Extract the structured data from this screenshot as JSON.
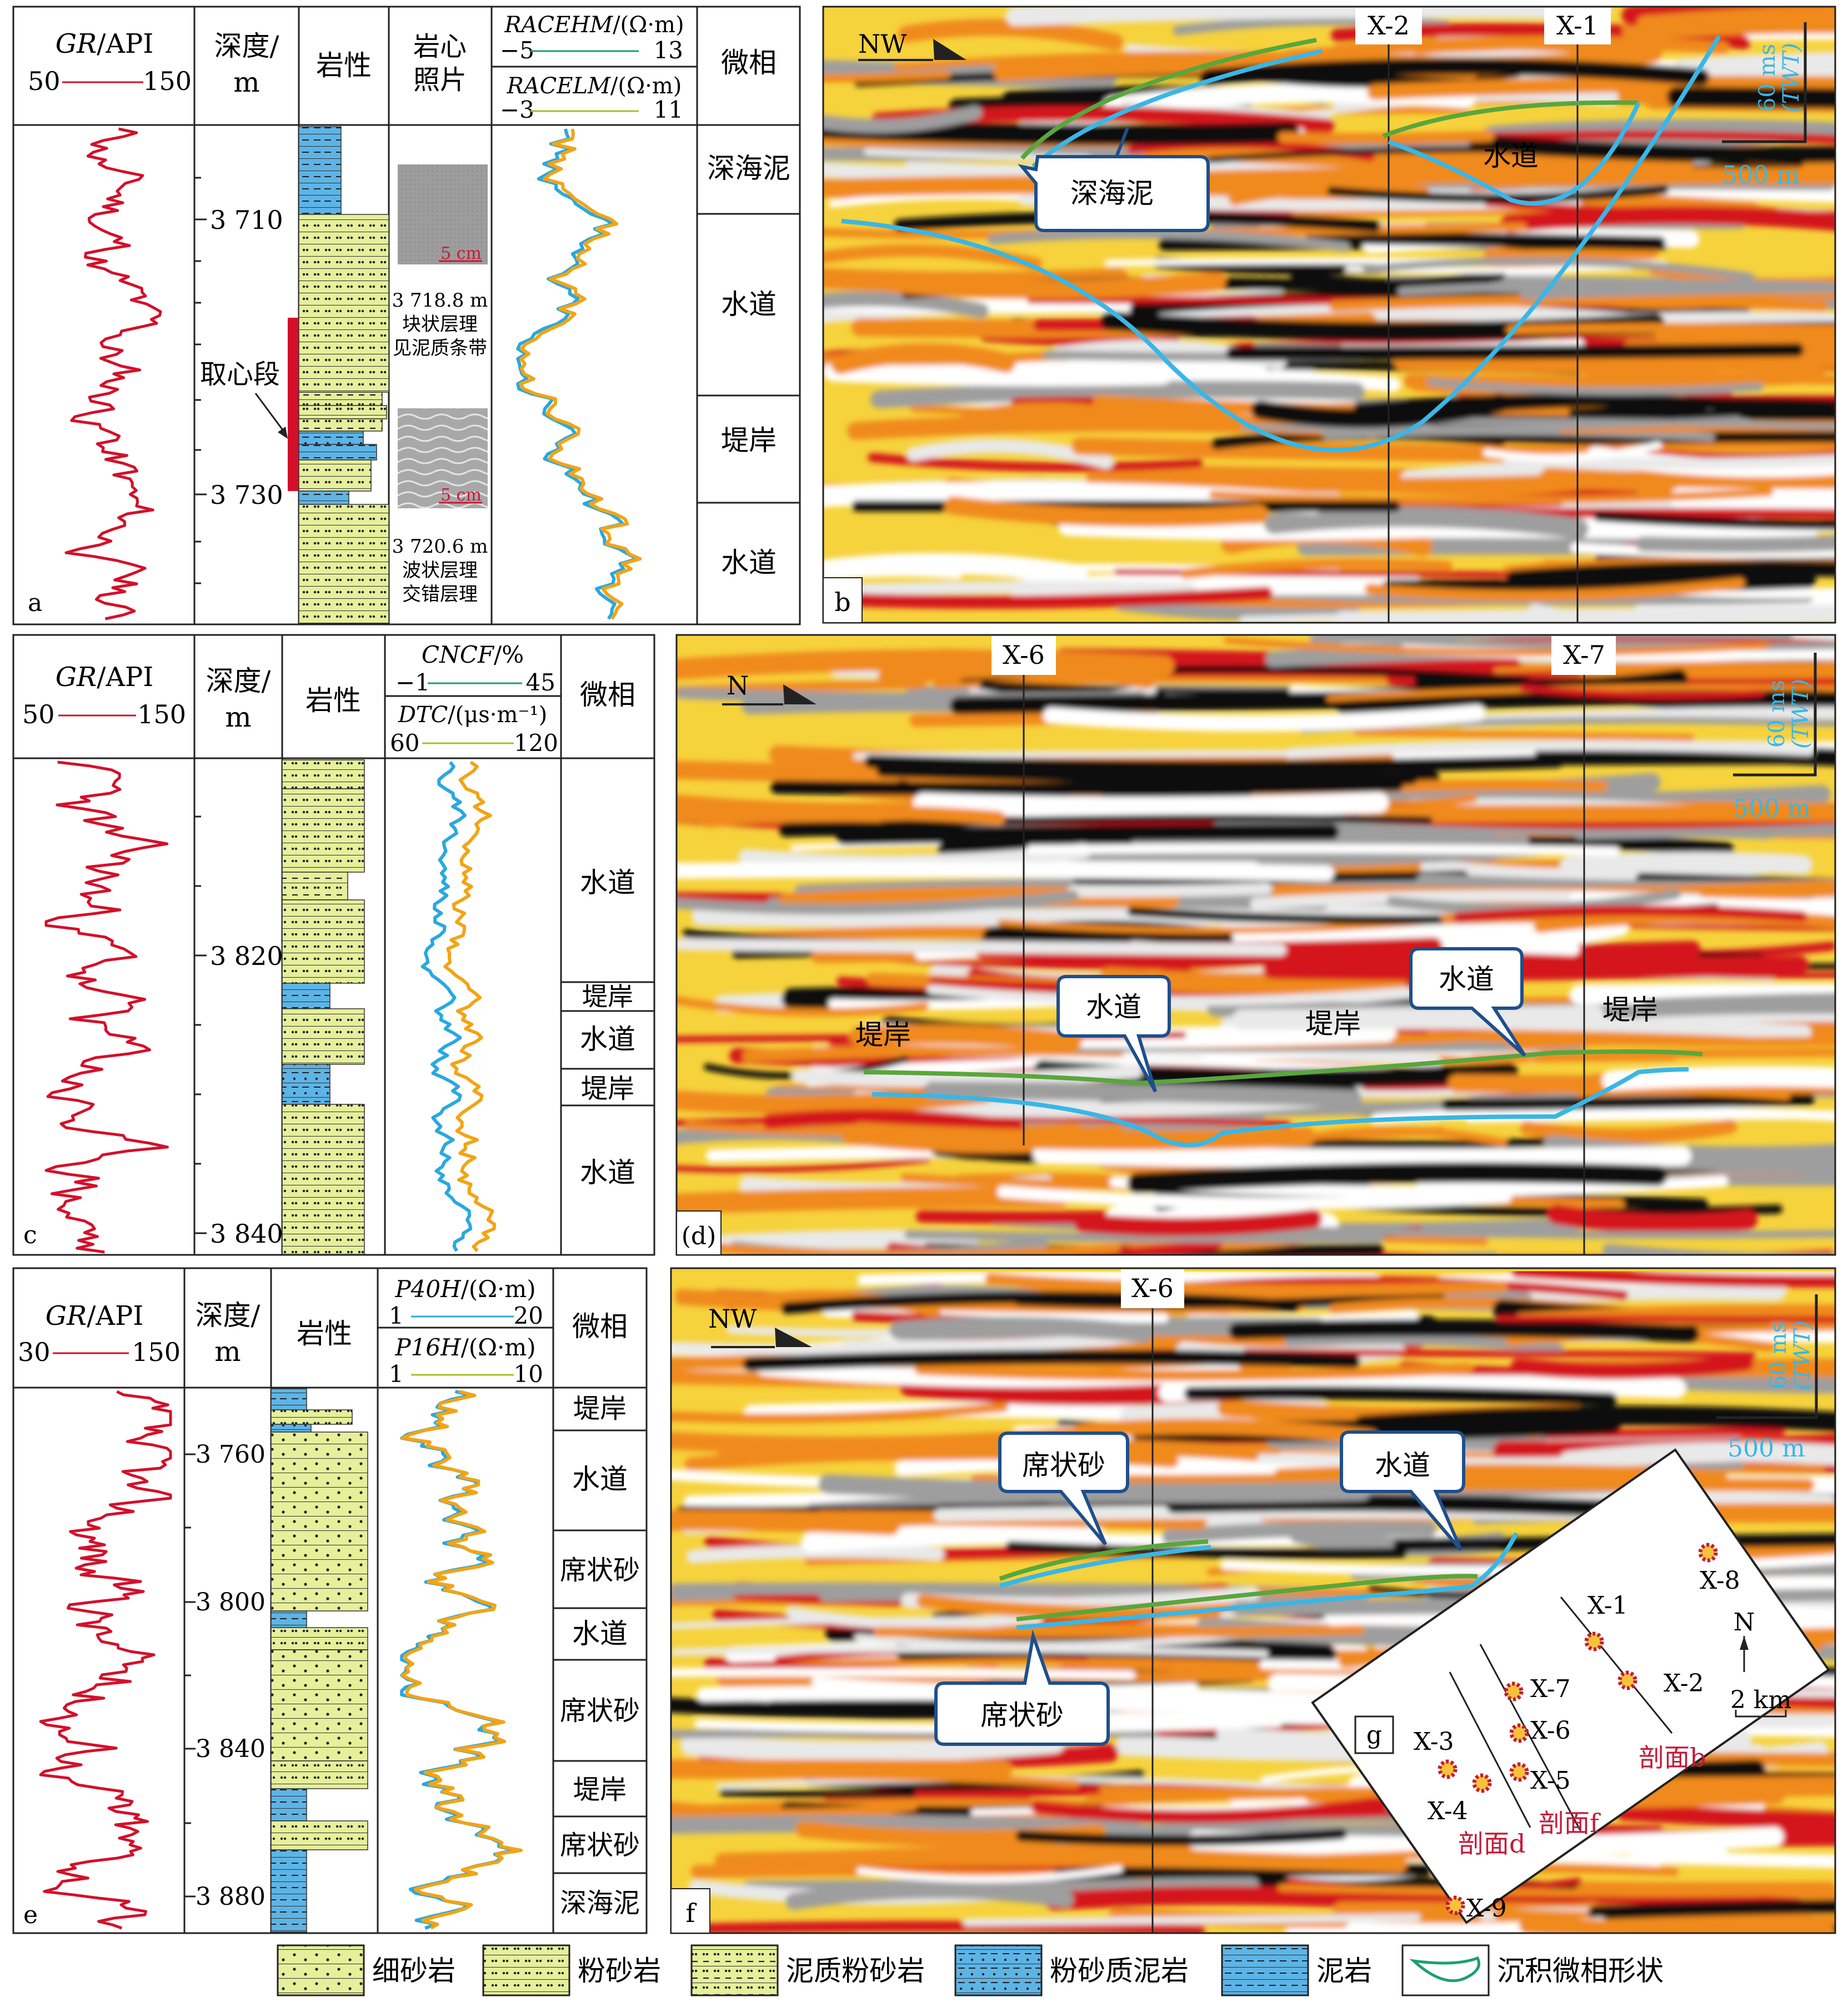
{
  "colors": {
    "gr_curve": "#d3102a",
    "curve_blue": "#2aa8df",
    "curve_orange": "#f2a416",
    "curve_green": "#1ca070",
    "curve_yellowgreen": "#a8bf2a",
    "horizon_green": "#5aa63c",
    "horizon_cyan": "#3ab6e6",
    "sandstone_fill": "#e6ef9a",
    "mudstone_fill": "#5cb4e6",
    "label_red": "#c41a38",
    "scale_cyan": "#3ab6e6",
    "seismic_yellow": "#f6d23c",
    "seismic_orange": "#f08a1a",
    "seismic_red": "#d4141a",
    "seismic_black": "#111111",
    "seismic_grey": "#9e9e9e"
  },
  "panel_a": {
    "label": "a",
    "gr_title": "GR",
    "gr_unit": "/API",
    "gr_min": "50",
    "gr_max": "150",
    "depth_title": "深度/",
    "depth_unit": "m",
    "litho_title": "岩性",
    "core_title_1": "岩心",
    "core_title_2": "照片",
    "res_deep_title": "RACEHM",
    "res_deep_unit": "/(Ω·m)",
    "res_deep_min": "−5",
    "res_deep_max": "13",
    "res_shallow_title": "RACELM",
    "res_shallow_unit": "/(Ω·m)",
    "res_shallow_min": "−3",
    "res_shallow_max": "11",
    "facies_title": "微相",
    "depth_ticks": [
      "3 710",
      "3 730"
    ],
    "coring_label": "取心段",
    "photo_scale": "5 cm",
    "photo1_caption": [
      "3 718.8 m",
      "块状层理",
      "见泥质条带"
    ],
    "photo2_caption": [
      "3 720.6 m",
      "波状层理",
      "交错层理"
    ],
    "facies": [
      "深海泥",
      "水道",
      "堤岸",
      "水道"
    ]
  },
  "panel_b": {
    "label": "b",
    "direction": "NW",
    "wells": [
      "X-2",
      "X-1"
    ],
    "scale_time": "60 ms",
    "scale_twt": "(TWT)",
    "scale_dist": "500 m",
    "callout_mud": "深海泥",
    "label_channel": "水道"
  },
  "panel_c": {
    "label": "c",
    "gr_title": "GR",
    "gr_unit": "/API",
    "gr_min": "50",
    "gr_max": "150",
    "depth_title": "深度/",
    "depth_unit": "m",
    "litho_title": "岩性",
    "cncf_title": "CNCF",
    "cncf_unit": "/%",
    "cncf_min": "−1",
    "cncf_max": "45",
    "dtc_title": "DTC",
    "dtc_unit": "/(μs·m⁻¹)",
    "dtc_min": "60",
    "dtc_max": "120",
    "facies_title": "微相",
    "depth_ticks": [
      "3 820",
      "3 840"
    ],
    "facies": [
      "水道",
      "堤岸",
      "水道",
      "堤岸",
      "水道"
    ]
  },
  "panel_d": {
    "label": "(d)",
    "direction": "N",
    "wells": [
      "X-6",
      "X-7"
    ],
    "scale_time": "60 ms",
    "scale_twt": "(TWT)",
    "scale_dist": "500 m",
    "callout_channel_1": "水道",
    "callout_channel_2": "水道",
    "levee_1": "堤岸",
    "levee_2": "堤岸",
    "levee_3": "堤岸"
  },
  "panel_e": {
    "label": "e",
    "gr_title": "GR",
    "gr_unit": "/API",
    "gr_min": "30",
    "gr_max": "150",
    "depth_title": "深度/",
    "depth_unit": "m",
    "litho_title": "岩性",
    "p40_title": "P40H",
    "p40_unit": "/(Ω·m)",
    "p40_min": "1",
    "p40_max": "20",
    "p16_title": "P16H",
    "p16_unit": "/(Ω·m)",
    "p16_min": "1",
    "p16_max": "10",
    "facies_title": "微相",
    "depth_ticks": [
      "3 760",
      "3 800",
      "3 840",
      "3 880"
    ],
    "facies": [
      "堤岸",
      "水道",
      "席状砂",
      "水道",
      "席状砂",
      "堤岸",
      "席状砂",
      "深海泥"
    ]
  },
  "panel_f": {
    "label": "f",
    "direction": "NW",
    "wells": [
      "X-6"
    ],
    "scale_time": "60 ms",
    "scale_twt": "(TWT)",
    "scale_dist": "500 m",
    "callout_sheet_1": "席状砂",
    "callout_sheet_2": "席状砂",
    "callout_channel": "水道"
  },
  "panel_g": {
    "label": "g",
    "north": "N",
    "scale": "2 km",
    "wells": [
      "X-1",
      "X-2",
      "X-3",
      "X-4",
      "X-5",
      "X-6",
      "X-7",
      "X-8",
      "X-9"
    ],
    "section_b": "剖面b",
    "section_d": "剖面d",
    "section_f": "剖面f"
  },
  "legend": {
    "items": [
      "细砂岩",
      "粉砂岩",
      "泥质粉砂岩",
      "粉砂质泥岩",
      "泥岩",
      "沉积微相形状"
    ]
  }
}
